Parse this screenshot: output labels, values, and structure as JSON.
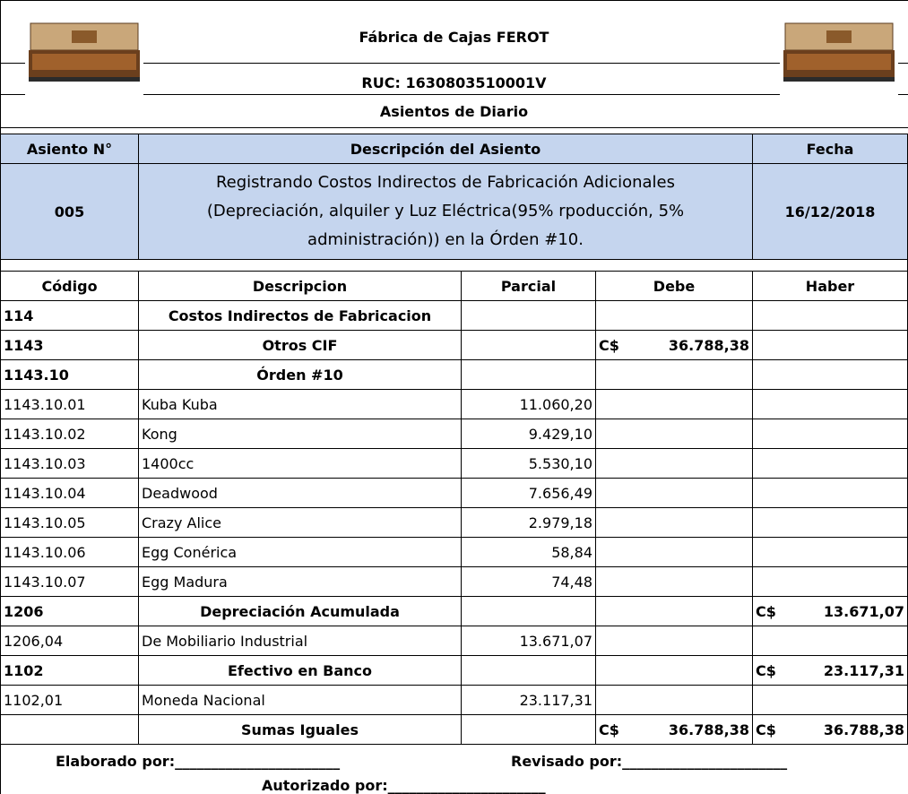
{
  "header": {
    "title": "Fábrica de Cajas FEROT",
    "ruc": "RUC: 1630803510001V",
    "subtitle": "Asientos de Diario"
  },
  "entry": {
    "headers": [
      "Asiento N°",
      "Descripción del Asiento",
      "Fecha"
    ],
    "number": "005",
    "description_lines": [
      "Registrando Costos Indirectos de Fabricación Adicionales",
      "(Depreciación, alquiler y Luz Eléctrica(95% rpoducción, 5%",
      "administración))  en la Órden #10."
    ],
    "date": "16/12/2018"
  },
  "table": {
    "headers": [
      "Código",
      "Descripcion",
      "Parcial",
      "Debe",
      "Haber"
    ],
    "rows": [
      {
        "code": "114",
        "description": "Costos Indirectos de Fabricacion",
        "bold": true
      },
      {
        "code": "1143",
        "description": "Otros CIF",
        "debe": {
          "currency": "C$",
          "amount": "36.788,38"
        },
        "bold": true
      },
      {
        "code": "1143.10",
        "description": "Órden #10",
        "bold": true
      },
      {
        "code": "1143.10.01",
        "description": "Kuba Kuba",
        "parcial": "11.060,20"
      },
      {
        "code": "1143.10.02",
        "description": "Kong",
        "parcial": "9.429,10"
      },
      {
        "code": "1143.10.03",
        "description": "1400cc",
        "parcial": "5.530,10"
      },
      {
        "code": "1143.10.04",
        "description": "Deadwood",
        "parcial": "7.656,49"
      },
      {
        "code": "1143.10.05",
        "description": "Crazy Alice",
        "parcial": "2.979,18"
      },
      {
        "code": "1143.10.06",
        "description": "Egg Conérica",
        "parcial": "58,84"
      },
      {
        "code": "1143.10.07",
        "description": "Egg Madura",
        "parcial": "74,48"
      },
      {
        "code": "1206",
        "description": "Depreciación Acumulada",
        "haber": {
          "currency": "C$",
          "amount": "13.671,07"
        },
        "bold": true
      },
      {
        "code": "1206,04",
        "description": "De Mobiliario Industrial",
        "parcial": "13.671,07"
      },
      {
        "code": "1102",
        "description": "Efectivo en Banco",
        "haber": {
          "currency": "C$",
          "amount": "23.117,31"
        },
        "bold": true
      },
      {
        "code": "1102,01",
        "description": "Moneda Nacional",
        "parcial": "23.117,31"
      },
      {
        "description": "Sumas Iguales",
        "debe": {
          "currency": "C$",
          "amount": "36.788,38"
        },
        "haber": {
          "currency": "C$",
          "amount": "36.788,38"
        },
        "bold": true
      }
    ]
  },
  "footer": {
    "prepared": "Elaborado por:_______________________",
    "reviewed": "Revisado por:_______________________",
    "authorized": "Autorizado por:______________________"
  }
}
